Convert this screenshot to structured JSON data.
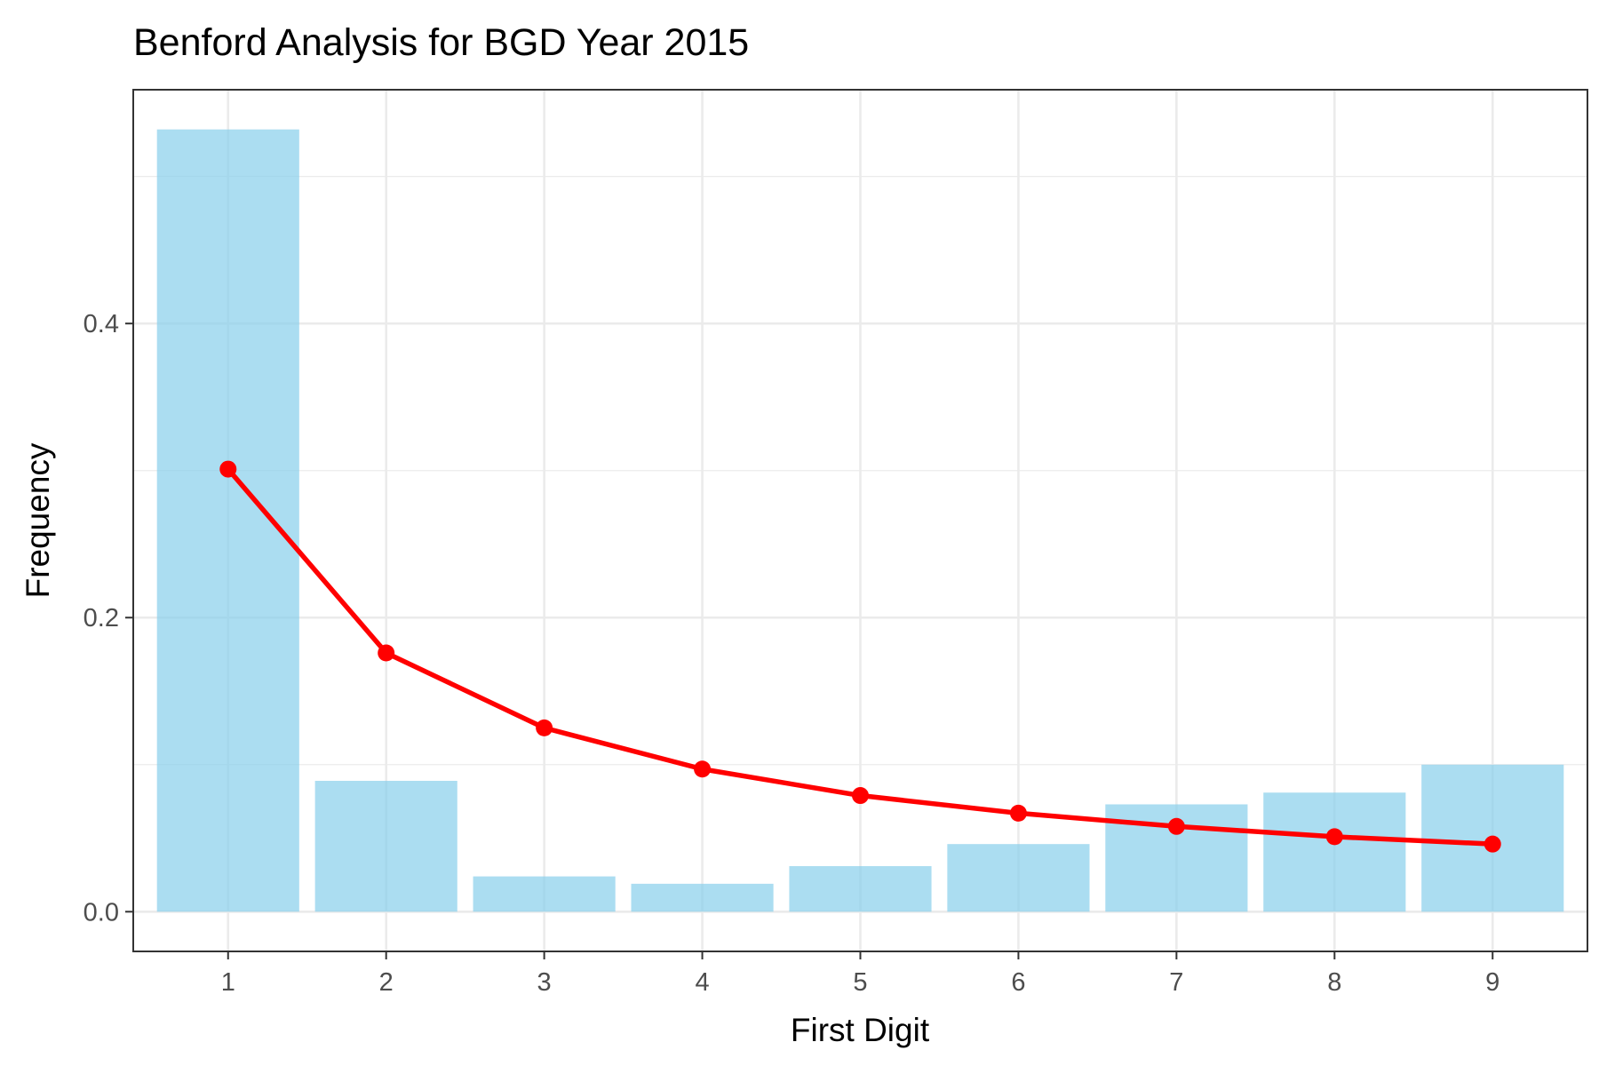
{
  "chart_data": {
    "type": "bar",
    "title": "Benford Analysis for BGD Year 2015",
    "xlabel": "First Digit",
    "ylabel": "Frequency",
    "categories": [
      "1",
      "2",
      "3",
      "4",
      "5",
      "6",
      "7",
      "8",
      "9"
    ],
    "series": [
      {
        "type": "bar",
        "values": [
          0.532,
          0.089,
          0.024,
          0.019,
          0.031,
          0.046,
          0.073,
          0.081,
          0.1
        ],
        "color": "#87CEEB"
      },
      {
        "type": "line",
        "values": [
          0.301,
          0.176,
          0.125,
          0.097,
          0.079,
          0.067,
          0.058,
          0.051,
          0.046
        ],
        "color": "#FF0000"
      }
    ],
    "yticks": [
      0.0,
      0.2,
      0.4
    ],
    "ytick_labels": [
      "0.0",
      "0.2",
      "0.4"
    ],
    "ylim": [
      -0.027,
      0.559
    ],
    "grid": true,
    "legend": "none"
  }
}
